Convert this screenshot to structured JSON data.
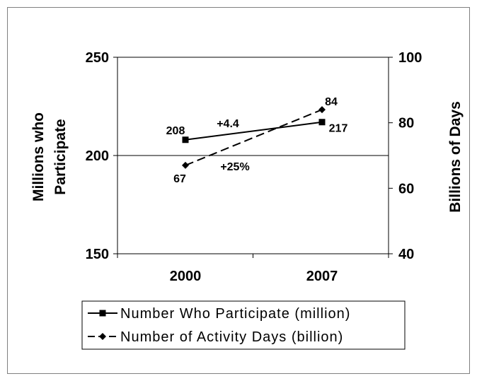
{
  "chart_data": {
    "type": "line",
    "categories": [
      "2000",
      "2007"
    ],
    "y_left": {
      "label_lines": [
        "Millions who",
        "Participate"
      ],
      "ylim": [
        150,
        250
      ],
      "ticks": [
        "250",
        "200",
        "150"
      ]
    },
    "y_right": {
      "label": "Billions of Days",
      "ylim": [
        40,
        100
      ],
      "ticks": [
        "100",
        "80",
        "60",
        "40"
      ]
    },
    "series": [
      {
        "name": "Number Who Participate (million)",
        "axis": "left",
        "style": "solid",
        "marker": "square",
        "values": [
          208,
          217
        ],
        "labels": [
          "208",
          "217"
        ]
      },
      {
        "name": "Number of Activity Days (billion)",
        "axis": "right",
        "style": "dashed",
        "marker": "diamond",
        "values": [
          67,
          84
        ],
        "labels": [
          "67",
          "84"
        ]
      }
    ],
    "annotations": [
      "+4.4",
      "+25%"
    ],
    "grid": false,
    "legend_position": "bottom"
  }
}
